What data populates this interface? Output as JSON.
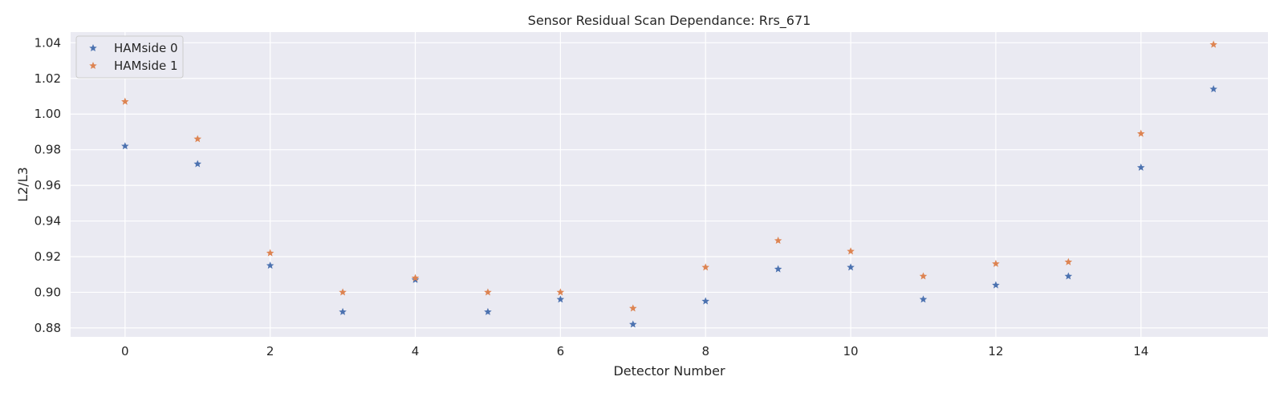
{
  "chart_data": {
    "type": "scatter",
    "title": "Sensor Residual Scan Dependance: Rrs_671",
    "xlabel": "Detector Number",
    "ylabel": "L2/L3",
    "xlim": [
      -0.75,
      15.75
    ],
    "ylim": [
      0.875,
      1.046
    ],
    "x_ticks": [
      0,
      2,
      4,
      6,
      8,
      10,
      12,
      14
    ],
    "y_ticks": [
      0.88,
      0.9,
      0.92,
      0.94,
      0.96,
      0.98,
      1.0,
      1.02,
      1.04
    ],
    "x_tick_labels": [
      "0",
      "2",
      "4",
      "6",
      "8",
      "10",
      "12",
      "14"
    ],
    "y_tick_labels": [
      "0.88",
      "0.90",
      "0.92",
      "0.94",
      "0.96",
      "0.98",
      "1.00",
      "1.02",
      "1.04"
    ],
    "grid": true,
    "legend_position": "top-left",
    "marker": "star",
    "x": [
      0,
      1,
      2,
      3,
      4,
      5,
      6,
      7,
      8,
      9,
      10,
      11,
      12,
      13,
      14,
      15
    ],
    "series": [
      {
        "name": "HAMside 0",
        "color": "#4c72b0",
        "values": [
          0.982,
          0.972,
          0.915,
          0.889,
          0.907,
          0.889,
          0.896,
          0.882,
          0.895,
          0.913,
          0.914,
          0.896,
          0.904,
          0.909,
          0.97,
          1.014
        ]
      },
      {
        "name": "HAMside 1",
        "color": "#dd8452",
        "values": [
          1.007,
          0.986,
          0.922,
          0.9,
          0.908,
          0.9,
          0.9,
          0.891,
          0.914,
          0.929,
          0.923,
          0.909,
          0.916,
          0.917,
          0.989,
          1.039
        ]
      }
    ]
  }
}
